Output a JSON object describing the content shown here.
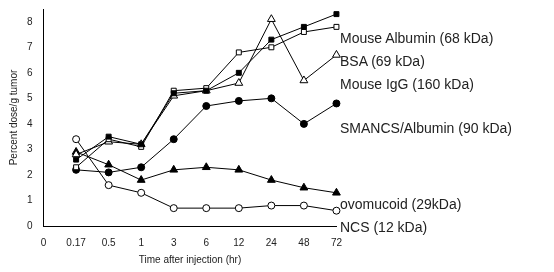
{
  "chart_data": {
    "type": "line",
    "x_label": "Time after injection (hr)",
    "y_label": "Percent dose/g tumor",
    "categories": [
      "0",
      "0.17",
      "0.5",
      "1",
      "3",
      "6",
      "12",
      "24",
      "48",
      "72"
    ],
    "series": [
      {
        "name": "Mouse Albumin (68 kDa)",
        "color": "#000000",
        "marker": "filled_square",
        "values": [
          null,
          2.6,
          3.5,
          3.2,
          5.2,
          5.3,
          6.0,
          7.3,
          7.8,
          8.3
        ]
      },
      {
        "name": "BSA (69 kDa)",
        "color": "#000000",
        "marker": "open_square",
        "values": [
          null,
          2.3,
          3.4,
          3.1,
          5.3,
          5.4,
          6.8,
          7.0,
          7.6,
          7.8
        ]
      },
      {
        "name": "Mouse IgG (160 kDa)",
        "color": "#000000",
        "marker": "open_triangle",
        "values": [
          null,
          2.8,
          3.3,
          3.2,
          5.1,
          5.3,
          5.6,
          8.1,
          5.7,
          6.7
        ]
      },
      {
        "name": "SMANCS/Albumin (90 kDa)",
        "color": "#000000",
        "marker": "filled_circle",
        "values": [
          null,
          2.2,
          2.1,
          2.3,
          3.4,
          4.7,
          4.9,
          5.0,
          4.0,
          4.8
        ]
      },
      {
        "name": "ovomucoid (29kDa)",
        "color": "#000000",
        "marker": "filled_triangle",
        "values": [
          null,
          2.9,
          2.4,
          1.8,
          2.2,
          2.3,
          2.2,
          1.8,
          1.5,
          1.3
        ]
      },
      {
        "name": "NCS (12 kDa)",
        "color": "#000000",
        "marker": "open_circle",
        "values": [
          null,
          3.4,
          1.6,
          1.3,
          0.7,
          0.7,
          0.7,
          0.8,
          0.8,
          0.6
        ]
      }
    ],
    "ylim": [
      0,
      8.5
    ],
    "yticks": [
      0,
      1,
      2,
      3,
      4,
      5,
      6,
      7,
      8
    ],
    "grid": false
  }
}
